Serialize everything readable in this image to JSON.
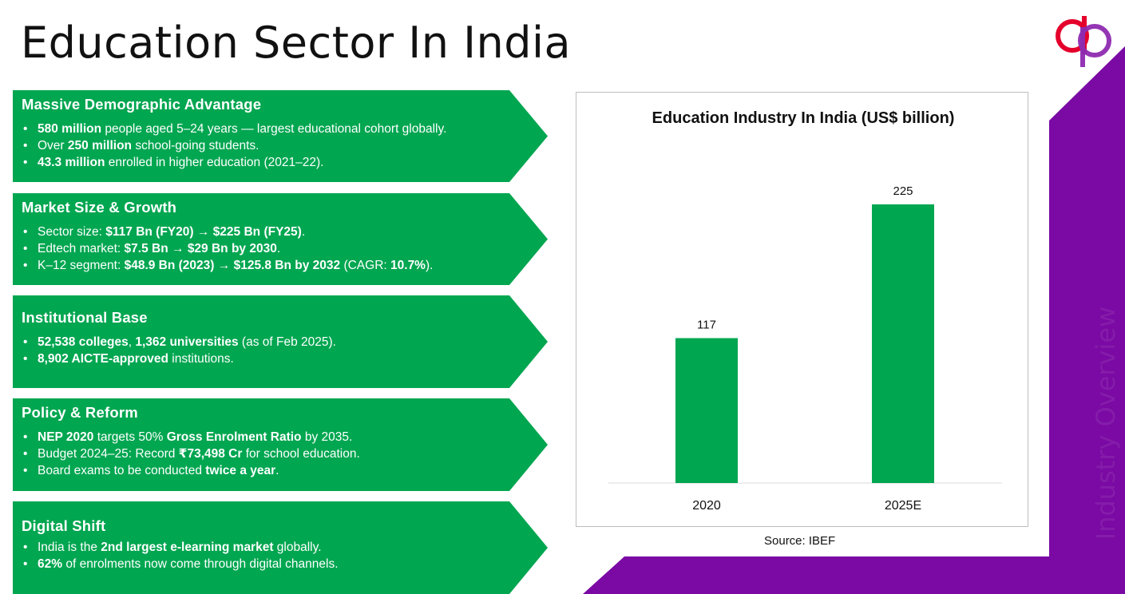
{
  "page": {
    "title": "Education Sector In India",
    "side_label": "Industry Overview",
    "source": "Source: IBEF",
    "colors": {
      "green": "#00a650",
      "purple": "#7a0aa3",
      "logo_red": "#e4002b",
      "logo_purple": "#8e2bb0"
    }
  },
  "cards": [
    {
      "title": "Massive Demographic Advantage",
      "items": [
        [
          {
            "b": "580 million"
          },
          {
            "t": " people aged 5–24 years — largest educational cohort globally."
          }
        ],
        [
          {
            "t": "Over "
          },
          {
            "b": "250 million"
          },
          {
            "t": " school-going students."
          }
        ],
        [
          {
            "b": "43.3 million"
          },
          {
            "t": " enrolled in higher education (2021–22)."
          }
        ]
      ]
    },
    {
      "title": "Market Size & Growth",
      "items": [
        [
          {
            "t": "Sector size: "
          },
          {
            "b": "$117 Bn (FY20)"
          },
          {
            "t": " → "
          },
          {
            "b": "$225 Bn (FY25)"
          },
          {
            "t": "."
          }
        ],
        [
          {
            "t": "Edtech market: "
          },
          {
            "b": "$7.5 Bn"
          },
          {
            "t": " → "
          },
          {
            "b": "$29 Bn by 2030"
          },
          {
            "t": "."
          }
        ],
        [
          {
            "t": "K–12 segment: "
          },
          {
            "b": "$48.9 Bn (2023)"
          },
          {
            "t": " → "
          },
          {
            "b": "$125.8 Bn by 2032"
          },
          {
            "t": " (CAGR: "
          },
          {
            "b": "10.7%"
          },
          {
            "t": ")."
          }
        ]
      ]
    },
    {
      "title": "Institutional Base",
      "items": [
        [
          {
            "b": "52,538 colleges"
          },
          {
            "t": ", "
          },
          {
            "b": "1,362 universities"
          },
          {
            "t": " (as of Feb 2025)."
          }
        ],
        [
          {
            "b": "8,902 AICTE-approved"
          },
          {
            "t": " institutions."
          }
        ]
      ]
    },
    {
      "title": "Policy & Reform",
      "items": [
        [
          {
            "b": "NEP 2020"
          },
          {
            "t": " targets 50% "
          },
          {
            "b": "Gross Enrolment Ratio"
          },
          {
            "t": " by 2035."
          }
        ],
        [
          {
            "t": "Budget 2024–25: Record "
          },
          {
            "b": "₹73,498 Cr"
          },
          {
            "t": " for school education."
          }
        ],
        [
          {
            "t": "Board exams to be conducted "
          },
          {
            "b": "twice a year"
          },
          {
            "t": "."
          }
        ]
      ]
    },
    {
      "title": "Digital Shift",
      "items": [
        [
          {
            "t": "India is the "
          },
          {
            "b": "2nd largest e-learning market"
          },
          {
            "t": " globally."
          }
        ],
        [
          {
            "b": "62%"
          },
          {
            "t": " of enrolments now come through digital channels."
          }
        ]
      ]
    }
  ],
  "chart_data": {
    "type": "bar",
    "title": "Education Industry In India (US$ billion)",
    "categories": [
      "2020",
      "2025E"
    ],
    "values": [
      117,
      225
    ],
    "xlabel": "",
    "ylabel": "",
    "ylim": [
      0,
      225
    ],
    "grid": false,
    "legend": "none",
    "bar_color": "#00a650"
  }
}
